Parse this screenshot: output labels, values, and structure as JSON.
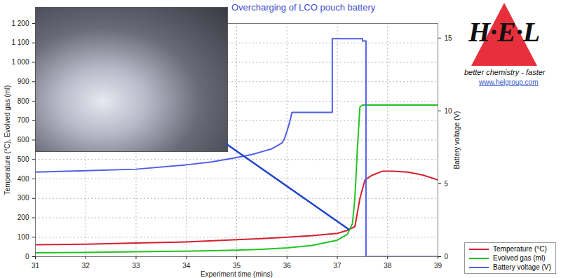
{
  "chart_data": {
    "type": "line",
    "title": "Overcharging of LCO pouch battery",
    "x_label": "Experiment time (mins)",
    "y_label": "Temperature (°C), Evolved gas (ml)",
    "y2_label": "Battery voltage (V)",
    "xlim": [
      31,
      39
    ],
    "xticks": [
      31,
      32,
      33,
      34,
      35,
      36,
      37,
      38,
      39
    ],
    "ylim": [
      0,
      1200
    ],
    "yticks": [
      0,
      100,
      200,
      300,
      400,
      500,
      600,
      700,
      800,
      900,
      {
        "value": 1000,
        "label": "1 000"
      },
      {
        "value": 1100,
        "label": "1 100"
      },
      {
        "value": 1200,
        "label": "1 200"
      }
    ],
    "y2lim": [
      0,
      16
    ],
    "y2ticks": [
      0,
      5,
      10,
      15
    ],
    "grid": true,
    "legend": "bottom-right",
    "annotations": [
      "H·E·L",
      "better chemistry - faster",
      "www.helgroup.com"
    ],
    "series": [
      {
        "name": "Temperature (°C)",
        "color": "#d42030",
        "x": [
          31,
          32,
          33,
          34,
          35,
          35.5,
          36,
          36.5,
          37,
          37.2,
          37.35,
          37.45,
          37.55,
          37.7,
          37.9,
          38.1,
          38.4,
          38.7,
          39
        ],
        "values": [
          61,
          64,
          70,
          76,
          87,
          93,
          100,
          108,
          120,
          135,
          155,
          300,
          395,
          420,
          440,
          440,
          435,
          420,
          395
        ]
      },
      {
        "name": "Evolved gas (ml)",
        "color": "#22c322",
        "x": [
          31,
          32,
          33,
          34,
          35,
          35.5,
          36,
          36.5,
          37,
          37.2,
          37.3,
          37.35,
          37.4,
          37.45,
          37.5,
          38,
          39
        ],
        "values": [
          20,
          22,
          25,
          28,
          33,
          38,
          45,
          58,
          85,
          115,
          170,
          300,
          560,
          770,
          780,
          780,
          780
        ]
      },
      {
        "name": "Battery voltage (V)",
        "color": "#4f5fe6",
        "axis": "y2",
        "x": [
          31,
          32,
          33,
          34,
          34.5,
          35,
          35.3,
          35.5,
          35.7,
          35.8,
          35.9,
          35.95,
          36,
          36.05,
          36.1,
          36.9,
          36.9,
          37.5,
          37.5,
          37.57,
          37.57,
          39
        ],
        "values": [
          5.8,
          5.9,
          6.0,
          6.3,
          6.5,
          6.8,
          7.0,
          7.2,
          7.4,
          7.6,
          7.8,
          8.1,
          8.6,
          9.2,
          9.9,
          9.9,
          14.95,
          14.95,
          14.8,
          14.8,
          0,
          0
        ]
      }
    ]
  }
}
